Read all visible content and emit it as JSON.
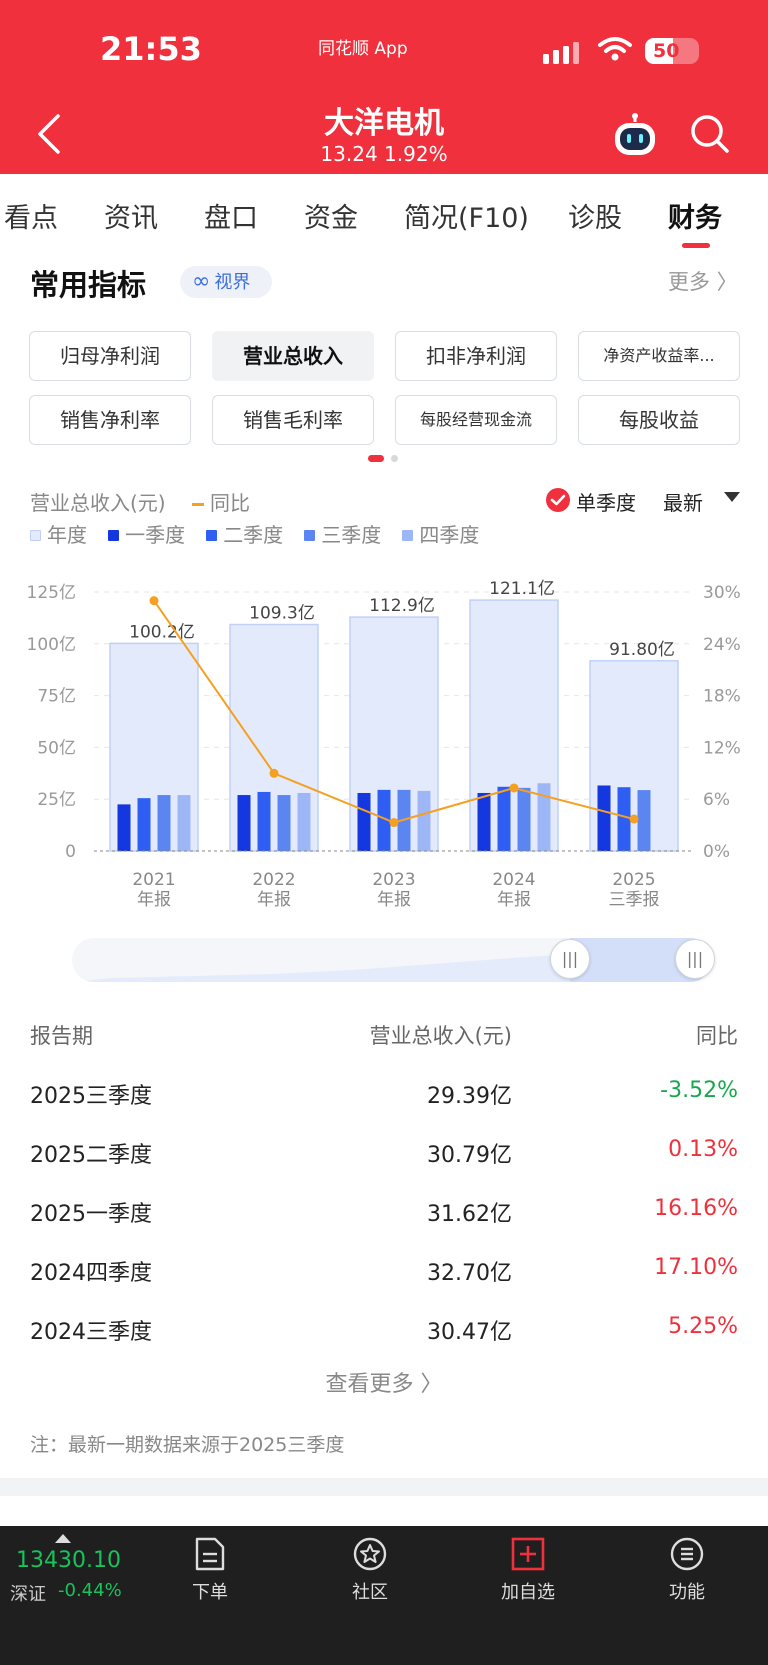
{
  "status": {
    "time": "21:53",
    "app": "同花顺 App",
    "battery": "50"
  },
  "header": {
    "title": "大洋电机",
    "price": "13.24",
    "change": "1.92%"
  },
  "tabs": [
    "看点",
    "资讯",
    "盘口",
    "资金",
    "简况(F10)",
    "诊股",
    "财务"
  ],
  "active_tab": "财务",
  "section": {
    "title": "常用指标",
    "vision": "视界",
    "more": "更多 〉"
  },
  "indicators": [
    "归母净利润",
    "营业总收入",
    "扣非净利润",
    "净资产收益率...",
    "销售净利率",
    "销售毛利率",
    "每股经营现金流",
    "每股收益"
  ],
  "active_indicator": "营业总收入",
  "chart_header": {
    "metric": "营业总收入(元)",
    "yoy": "同比",
    "single_quarter": "单季度",
    "latest": "最新",
    "legend": [
      "年度",
      "一季度",
      "二季度",
      "三季度",
      "四季度"
    ]
  },
  "colors": {
    "brand_red": "#f0303c",
    "annual_fill": "#e3eafc",
    "annual_stroke": "#c2d0f5",
    "q1": "#1437e0",
    "q2": "#2e5ff2",
    "q3": "#5b86f2",
    "q4": "#9db7f6",
    "yoy_line": "#f5a020",
    "down_green": "#17a84b"
  },
  "chart_data": {
    "type": "bar",
    "categories": [
      "2021\n年报",
      "2022\n年报",
      "2023\n年报",
      "2024\n年报",
      "2025\n三季报"
    ],
    "y_ticks_left": [
      "0",
      "25亿",
      "50亿",
      "75亿",
      "100亿",
      "125亿"
    ],
    "y_ticks_right": [
      "0%",
      "6%",
      "12%",
      "18%",
      "24%",
      "30%"
    ],
    "ylim": [
      0,
      125
    ],
    "ylim_right": [
      0,
      30
    ],
    "annual": {
      "values": [
        100.2,
        109.3,
        112.9,
        121.1,
        91.8
      ],
      "labels": [
        "100.2亿",
        "109.3亿",
        "112.9亿",
        "121.1亿",
        "91.80亿"
      ]
    },
    "series": [
      {
        "name": "一季度",
        "values": [
          22.5,
          27.0,
          28.0,
          28.0,
          31.62
        ]
      },
      {
        "name": "二季度",
        "values": [
          25.5,
          28.5,
          29.5,
          31.0,
          30.79
        ]
      },
      {
        "name": "三季度",
        "values": [
          27.0,
          27.0,
          29.5,
          30.47,
          29.39
        ]
      },
      {
        "name": "四季度",
        "values": [
          27.0,
          28.0,
          29.0,
          32.7,
          null
        ]
      }
    ],
    "yoy": {
      "name": "同比",
      "values": [
        29.0,
        9.0,
        3.3,
        7.3,
        3.7
      ]
    }
  },
  "table": {
    "headers": [
      "报告期",
      "营业总收入(元)",
      "同比"
    ],
    "rows": [
      {
        "period": "2025三季度",
        "revenue": "29.39亿",
        "yoy": "-3.52%",
        "dir": "neg"
      },
      {
        "period": "2025二季度",
        "revenue": "30.79亿",
        "yoy": "0.13%",
        "dir": "pos"
      },
      {
        "period": "2025一季度",
        "revenue": "31.62亿",
        "yoy": "16.16%",
        "dir": "pos"
      },
      {
        "period": "2024四季度",
        "revenue": "32.70亿",
        "yoy": "17.10%",
        "dir": "pos"
      },
      {
        "period": "2024三季度",
        "revenue": "30.47亿",
        "yoy": "5.25%",
        "dir": "pos"
      }
    ],
    "view_more": "查看更多 〉",
    "note": "注：最新一期数据来源于2025三季度"
  },
  "bottom": {
    "index_value": "13430.10",
    "index_name": "深证",
    "index_change": "-0.44%",
    "nav": [
      "下单",
      "社区",
      "加自选",
      "功能"
    ]
  }
}
